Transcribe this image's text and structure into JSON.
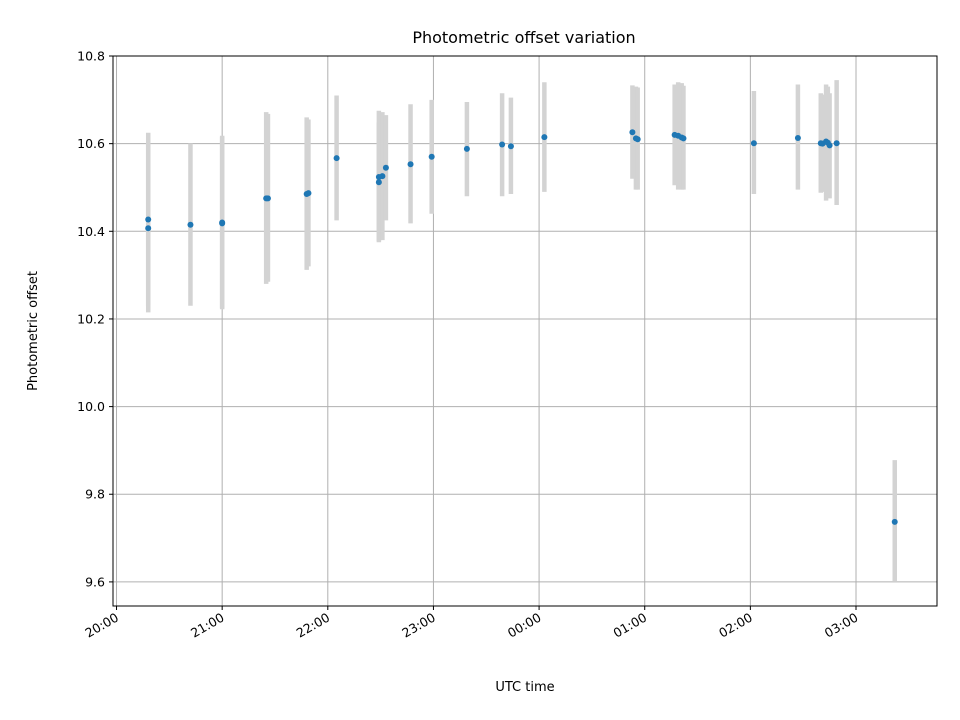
{
  "chart_data": {
    "type": "scatter",
    "title": "Photometric offset variation",
    "xlabel": "UTC time",
    "ylabel": "Photometric offset",
    "x_is_time": true,
    "xlim": [
      "19:58",
      "03:46"
    ],
    "ylim": [
      9.545,
      10.8
    ],
    "x_ticks": [
      "20:00",
      "21:00",
      "22:00",
      "23:00",
      "00:00",
      "01:00",
      "02:00",
      "03:00"
    ],
    "y_ticks": [
      9.6,
      9.8,
      10.0,
      10.2,
      10.4,
      10.6,
      10.8
    ],
    "grid": true,
    "colors": {
      "point": "#1f77b4",
      "error_bar": "#d3d3d3",
      "grid": "#b0b0b0"
    },
    "points": [
      {
        "t": "20:18",
        "y": 10.407,
        "lo": 10.215,
        "hi": 10.6
      },
      {
        "t": "20:18",
        "y": 10.427,
        "lo": 10.23,
        "hi": 10.625
      },
      {
        "t": "20:42",
        "y": 10.415,
        "lo": 10.23,
        "hi": 10.6
      },
      {
        "t": "21:00",
        "y": 10.418,
        "lo": 10.225,
        "hi": 10.615
      },
      {
        "t": "21:00",
        "y": 10.42,
        "lo": 10.222,
        "hi": 10.618
      },
      {
        "t": "21:25",
        "y": 10.475,
        "lo": 10.28,
        "hi": 10.672
      },
      {
        "t": "21:26",
        "y": 10.475,
        "lo": 10.285,
        "hi": 10.668
      },
      {
        "t": "21:48",
        "y": 10.485,
        "lo": 10.312,
        "hi": 10.66
      },
      {
        "t": "21:49",
        "y": 10.487,
        "lo": 10.32,
        "hi": 10.655
      },
      {
        "t": "22:05",
        "y": 10.567,
        "lo": 10.425,
        "hi": 10.71
      },
      {
        "t": "22:29",
        "y": 10.512,
        "lo": 10.378,
        "hi": 10.648
      },
      {
        "t": "22:29",
        "y": 10.524,
        "lo": 10.375,
        "hi": 10.675
      },
      {
        "t": "22:31",
        "y": 10.526,
        "lo": 10.38,
        "hi": 10.672
      },
      {
        "t": "22:33",
        "y": 10.545,
        "lo": 10.425,
        "hi": 10.665
      },
      {
        "t": "22:47",
        "y": 10.553,
        "lo": 10.418,
        "hi": 10.69
      },
      {
        "t": "22:59",
        "y": 10.57,
        "lo": 10.44,
        "hi": 10.7
      },
      {
        "t": "23:19",
        "y": 10.588,
        "lo": 10.48,
        "hi": 10.695
      },
      {
        "t": "23:39",
        "y": 10.598,
        "lo": 10.48,
        "hi": 10.715
      },
      {
        "t": "23:44",
        "y": 10.594,
        "lo": 10.485,
        "hi": 10.705
      },
      {
        "t": "00:03",
        "y": 10.615,
        "lo": 10.49,
        "hi": 10.74
      },
      {
        "t": "00:53",
        "y": 10.626,
        "lo": 10.52,
        "hi": 10.733
      },
      {
        "t": "00:55",
        "y": 10.612,
        "lo": 10.495,
        "hi": 10.73
      },
      {
        "t": "00:56",
        "y": 10.61,
        "lo": 10.495,
        "hi": 10.728
      },
      {
        "t": "01:17",
        "y": 10.62,
        "lo": 10.505,
        "hi": 10.735
      },
      {
        "t": "01:19",
        "y": 10.618,
        "lo": 10.495,
        "hi": 10.74
      },
      {
        "t": "01:21",
        "y": 10.614,
        "lo": 10.495,
        "hi": 10.738
      },
      {
        "t": "01:22",
        "y": 10.612,
        "lo": 10.495,
        "hi": 10.732
      },
      {
        "t": "02:02",
        "y": 10.601,
        "lo": 10.485,
        "hi": 10.72
      },
      {
        "t": "02:27",
        "y": 10.613,
        "lo": 10.495,
        "hi": 10.735
      },
      {
        "t": "02:40",
        "y": 10.601,
        "lo": 10.488,
        "hi": 10.715
      },
      {
        "t": "02:41",
        "y": 10.6,
        "lo": 10.49,
        "hi": 10.712
      },
      {
        "t": "02:43",
        "y": 10.605,
        "lo": 10.47,
        "hi": 10.735
      },
      {
        "t": "02:44",
        "y": 10.602,
        "lo": 10.478,
        "hi": 10.73
      },
      {
        "t": "02:45",
        "y": 10.596,
        "lo": 10.475,
        "hi": 10.715
      },
      {
        "t": "02:49",
        "y": 10.601,
        "lo": 10.46,
        "hi": 10.745
      },
      {
        "t": "03:22",
        "y": 9.737,
        "lo": 9.6,
        "hi": 9.878
      }
    ]
  }
}
